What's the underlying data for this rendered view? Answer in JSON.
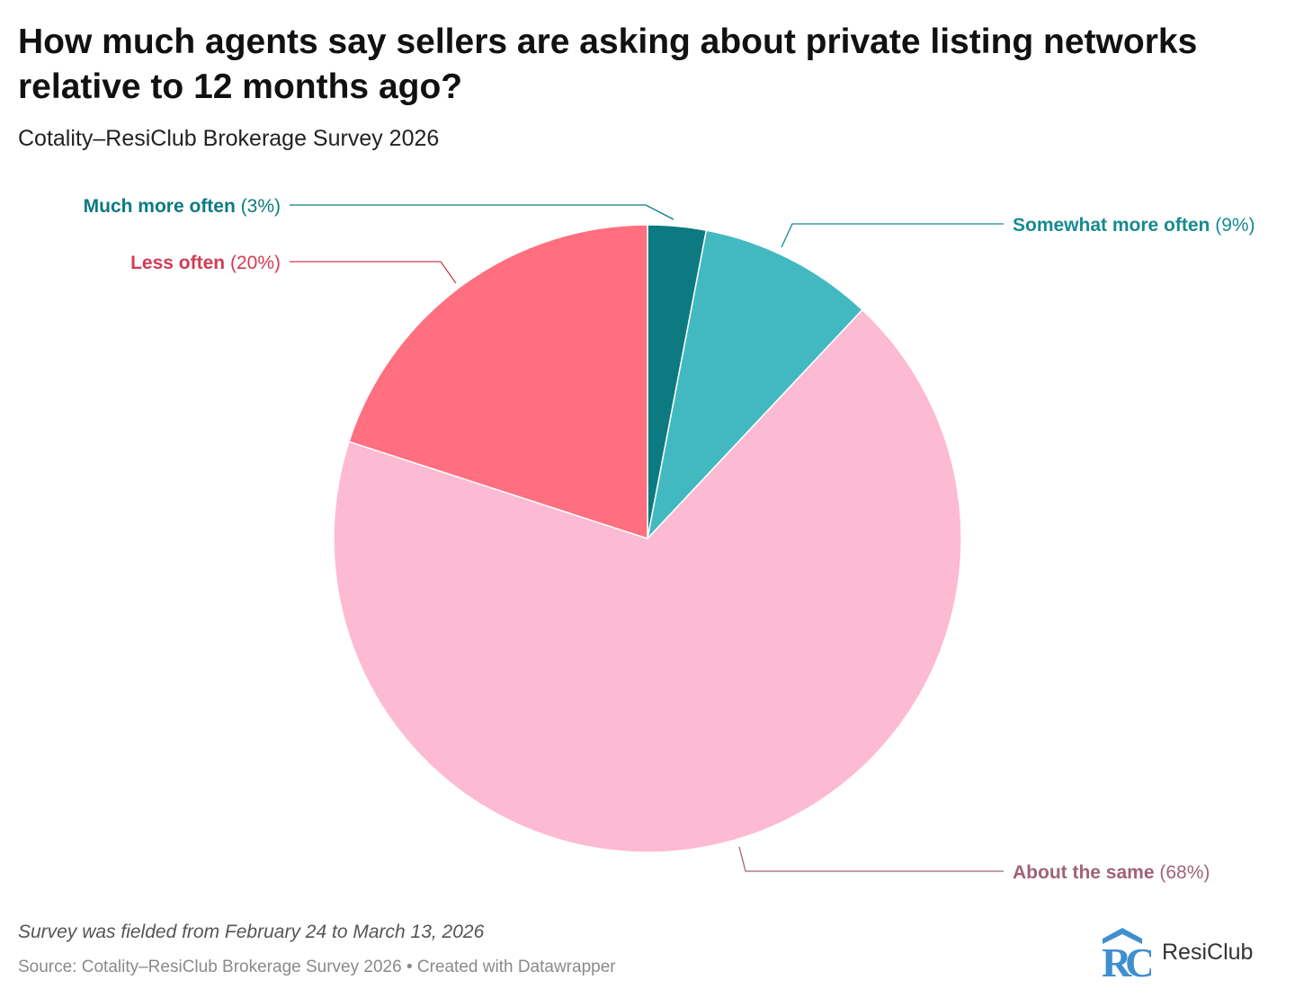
{
  "chart_data": {
    "type": "pie",
    "title": "How much agents say sellers are asking about private listing networks relative to 12 months ago?",
    "subtitle": "Cotality–ResiClub Brokerage Survey 2026",
    "slices": [
      {
        "label": "Much more often",
        "value": 3,
        "value_text": "(3%)",
        "color": "#0c7a80",
        "label_color": "#0c7a80"
      },
      {
        "label": "Somewhat more often",
        "value": 9,
        "value_text": "(9%)",
        "color": "#42b9c1",
        "label_color": "#178a91"
      },
      {
        "label": "About the same",
        "value": 68,
        "value_text": "(68%)",
        "color": "#fdbad3",
        "label_color": "#a0627a"
      },
      {
        "label": "Less often",
        "value": 20,
        "value_text": "(20%)",
        "color": "#ff6f7f",
        "label_color": "#d23c55"
      }
    ],
    "start_angle": "12 o'clock",
    "direction": "clockwise"
  },
  "footer": {
    "notes": "Survey was fielded from February 24 to March 13, 2026",
    "source": "Source: Cotality–ResiClub Brokerage Survey 2026 • Created with Datawrapper"
  },
  "logo": {
    "text": "ResiClub",
    "mark_letters": "RC",
    "colors": {
      "primary": "#3f8fd0",
      "secondary": "#8cc3ec"
    }
  }
}
